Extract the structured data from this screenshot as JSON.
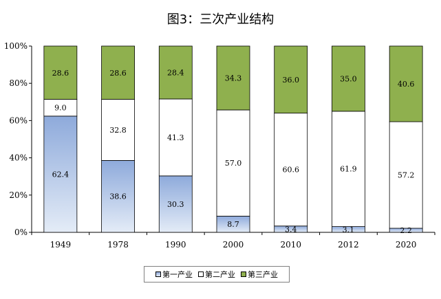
{
  "chart_data": {
    "type": "bar",
    "stacked": true,
    "percent": true,
    "title": "图3：三次产业结构",
    "categories": [
      "1949",
      "1978",
      "1990",
      "2000",
      "2010",
      "2012",
      "2020"
    ],
    "series": [
      {
        "name": "第一产业",
        "values": [
          62.4,
          38.6,
          30.3,
          8.7,
          3.4,
          3.1,
          2.2
        ],
        "labels": [
          "62.4",
          "38.6",
          "30.3",
          "8.7",
          "3.4",
          "3.1",
          "2.2"
        ],
        "color_top": "#8eaadb",
        "color_bottom": "#e4ecf7"
      },
      {
        "name": "第二产业",
        "values": [
          9.0,
          32.8,
          41.3,
          57.0,
          60.6,
          61.9,
          57.2
        ],
        "labels": [
          "9.0",
          "32.8",
          "41.3",
          "57.0",
          "60.6",
          "61.9",
          "57.2"
        ],
        "color": "#ffffff"
      },
      {
        "name": "第三产业",
        "values": [
          28.6,
          28.6,
          28.4,
          34.3,
          36.0,
          35.0,
          40.6
        ],
        "labels": [
          "28.6",
          "28.6",
          "28.4",
          "34.3",
          "36.0",
          "35.0",
          "40.6"
        ],
        "color": "#8fb04e"
      }
    ],
    "y_ticks": [
      "0%",
      "20%",
      "40%",
      "60%",
      "80%",
      "100%"
    ],
    "ylim": [
      0,
      100
    ],
    "legend_position": "bottom",
    "grid": false
  }
}
